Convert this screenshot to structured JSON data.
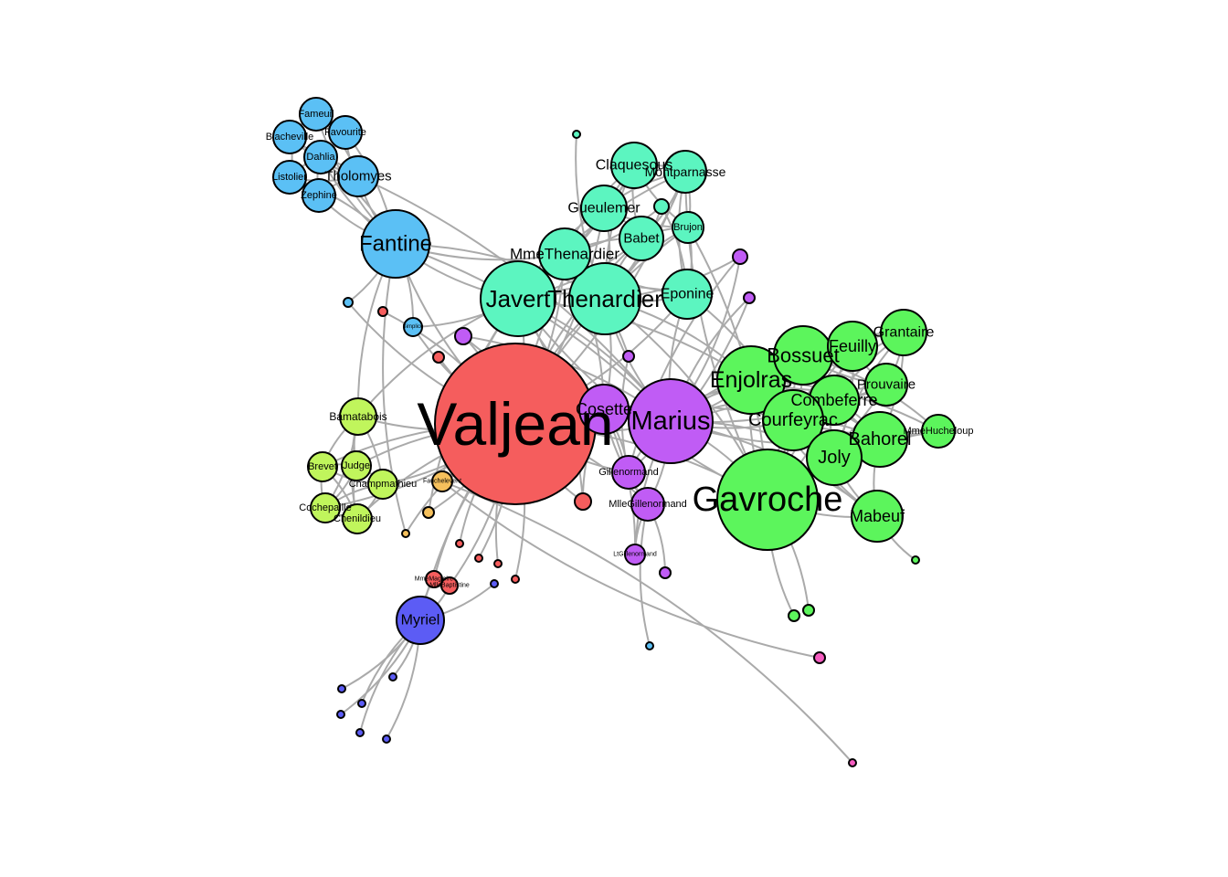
{
  "groups": {
    "valjean": "#f55d5d",
    "fantine": "#5bc0f5",
    "thenardier": "#5cf5c0",
    "marius": "#c05cf5",
    "gavroche": "#5cf55c",
    "trial": "#c0f55c",
    "myriel": "#5c5cf5",
    "fauchelevent": "#f5c05c",
    "misc": "#f55cc0"
  },
  "nodes": [
    {
      "id": "Valjean",
      "label": "Valjean",
      "group": "valjean"
    },
    {
      "id": "Fantine",
      "label": "Fantine",
      "group": "fantine"
    },
    {
      "id": "Favourite",
      "label": "Favourite",
      "group": "fantine"
    },
    {
      "id": "Fameuil",
      "label": "Fameuil",
      "group": "fantine"
    },
    {
      "id": "Blacheville",
      "label": "Blacheville",
      "group": "fantine"
    },
    {
      "id": "Dahlia",
      "label": "Dahlia",
      "group": "fantine"
    },
    {
      "id": "Listolier",
      "label": "Listolier",
      "group": "fantine"
    },
    {
      "id": "Tholomyes",
      "label": "Tholomyes",
      "group": "fantine"
    },
    {
      "id": "Zephine",
      "label": "Zephine",
      "group": "fantine"
    },
    {
      "id": "Simplice",
      "label": "Simplice",
      "group": "fantine"
    },
    {
      "id": "Marguerite",
      "label": "",
      "group": "fantine"
    },
    {
      "id": "Javert",
      "label": "Javert",
      "group": "thenardier"
    },
    {
      "id": "Thenardier",
      "label": "Thenardier",
      "group": "thenardier"
    },
    {
      "id": "MmeThenardier",
      "label": "MmeThenardier",
      "group": "thenardier"
    },
    {
      "id": "Claquesous",
      "label": "Claquesous",
      "group": "thenardier"
    },
    {
      "id": "Montparnasse",
      "label": "Montparnasse",
      "group": "thenardier"
    },
    {
      "id": "Gueulemer",
      "label": "Gueulemer",
      "group": "thenardier"
    },
    {
      "id": "Babet",
      "label": "Babet",
      "group": "thenardier"
    },
    {
      "id": "Brujon",
      "label": "Brujon",
      "group": "thenardier"
    },
    {
      "id": "Eponine",
      "label": "Eponine",
      "group": "thenardier"
    },
    {
      "id": "Anzelma",
      "label": "",
      "group": "thenardier"
    },
    {
      "id": "Boulatruelle",
      "label": "",
      "group": "thenardier"
    },
    {
      "id": "Marius",
      "label": "Marius",
      "group": "marius"
    },
    {
      "id": "Cosette",
      "label": "Cosette",
      "group": "marius"
    },
    {
      "id": "Gillenormand",
      "label": "Gillenormand",
      "group": "marius"
    },
    {
      "id": "MlleGillenormand",
      "label": "MlleGillenormand",
      "group": "marius"
    },
    {
      "id": "LtGillenormand",
      "label": "LtGillenormand",
      "group": "marius"
    },
    {
      "id": "Woman2",
      "label": "",
      "group": "marius"
    },
    {
      "id": "Pontmercy",
      "label": "",
      "group": "marius"
    },
    {
      "id": "BaronessT",
      "label": "",
      "group": "marius"
    },
    {
      "id": "Magnon",
      "label": "",
      "group": "marius"
    },
    {
      "id": "MlleVaubois",
      "label": "",
      "group": "marius"
    },
    {
      "id": "Toussaint",
      "label": "",
      "group": "valjean"
    },
    {
      "id": "Gavroche",
      "label": "Gavroche",
      "group": "gavroche"
    },
    {
      "id": "Enjolras",
      "label": "Enjolras",
      "group": "gavroche"
    },
    {
      "id": "Bossuet",
      "label": "Bossuet",
      "group": "gavroche"
    },
    {
      "id": "Feuilly",
      "label": "Feuilly",
      "group": "gavroche"
    },
    {
      "id": "Grantaire",
      "label": "Grantaire",
      "group": "gavroche"
    },
    {
      "id": "Prouvaire",
      "label": "Prouvaire",
      "group": "gavroche"
    },
    {
      "id": "Combeferre",
      "label": "Combeferre",
      "group": "gavroche"
    },
    {
      "id": "Courfeyrac",
      "label": "Courfeyrac",
      "group": "gavroche"
    },
    {
      "id": "Bahorel",
      "label": "Bahorel",
      "group": "gavroche"
    },
    {
      "id": "MmeHucheloup",
      "label": "MmeHucheloup",
      "group": "gavroche"
    },
    {
      "id": "Joly",
      "label": "Joly",
      "group": "gavroche"
    },
    {
      "id": "Mabeuf",
      "label": "Mabeuf",
      "group": "gavroche"
    },
    {
      "id": "Child1",
      "label": "",
      "group": "gavroche"
    },
    {
      "id": "Child2",
      "label": "",
      "group": "gavroche"
    },
    {
      "id": "MotherPlutarch",
      "label": "",
      "group": "gavroche"
    },
    {
      "id": "MotherInnocent",
      "label": "",
      "group": "misc"
    },
    {
      "id": "Gribier",
      "label": "",
      "group": "misc"
    },
    {
      "id": "Bamatabois",
      "label": "Bamatabois",
      "group": "trial"
    },
    {
      "id": "Brevet",
      "label": "Brevet",
      "group": "trial"
    },
    {
      "id": "Judge",
      "label": "Judge",
      "group": "trial"
    },
    {
      "id": "Champmathieu",
      "label": "Champmathieu",
      "group": "trial"
    },
    {
      "id": "Cochepaille",
      "label": "Cochepaille",
      "group": "trial"
    },
    {
      "id": "Chenildieu",
      "label": "Chenildieu",
      "group": "trial"
    },
    {
      "id": "Fauchelevent",
      "label": "Fauchelevent",
      "group": "fauchelevent"
    },
    {
      "id": "Woman1",
      "label": "",
      "group": "fauchelevent"
    },
    {
      "id": "Perpetue",
      "label": "",
      "group": "fauchelevent"
    },
    {
      "id": "Myriel",
      "label": "Myriel",
      "group": "myriel"
    },
    {
      "id": "Napoleon",
      "label": "",
      "group": "myriel"
    },
    {
      "id": "MlleBaptistine",
      "label": "MlleBaptistine",
      "group": "valjean"
    },
    {
      "id": "MmeMagloire",
      "label": "MmeMagloire",
      "group": "valjean"
    },
    {
      "id": "Isabeau",
      "label": "",
      "group": "valjean"
    },
    {
      "id": "Gervais",
      "label": "",
      "group": "valjean"
    },
    {
      "id": "Labarre",
      "label": "",
      "group": "valjean"
    },
    {
      "id": "MmeDeR",
      "label": "",
      "group": "valjean"
    },
    {
      "id": "Scaufflaire",
      "label": "",
      "group": "valjean"
    },
    {
      "id": "Cravatte",
      "label": "",
      "group": "myriel"
    },
    {
      "id": "Count",
      "label": "",
      "group": "myriel"
    },
    {
      "id": "OldMan",
      "label": "",
      "group": "myriel"
    },
    {
      "id": "CountessDeLo",
      "label": "",
      "group": "myriel"
    },
    {
      "id": "Geborand",
      "label": "",
      "group": "myriel"
    },
    {
      "id": "Champtercier",
      "label": "",
      "group": "myriel"
    },
    {
      "id": "MmePontmercy",
      "label": "",
      "group": "fantine"
    },
    {
      "id": "Gertrude",
      "label": "",
      "group": "valjean"
    }
  ],
  "edges": [
    [
      "Valjean",
      "Fantine"
    ],
    [
      "Valjean",
      "Javert"
    ],
    [
      "Valjean",
      "Thenardier"
    ],
    [
      "Valjean",
      "MmeThenardier"
    ],
    [
      "Valjean",
      "Cosette"
    ],
    [
      "Valjean",
      "Marius"
    ],
    [
      "Valjean",
      "Gavroche"
    ],
    [
      "Valjean",
      "Enjolras"
    ],
    [
      "Valjean",
      "Bamatabois"
    ],
    [
      "Valjean",
      "Judge"
    ],
    [
      "Valjean",
      "Champmathieu"
    ],
    [
      "Valjean",
      "Brevet"
    ],
    [
      "Valjean",
      "Cochepaille"
    ],
    [
      "Valjean",
      "Chenildieu"
    ],
    [
      "Valjean",
      "Fauchelevent"
    ],
    [
      "Valjean",
      "Myriel"
    ],
    [
      "Valjean",
      "MlleBaptistine"
    ],
    [
      "Valjean",
      "MmeMagloire"
    ],
    [
      "Valjean",
      "Simplice"
    ],
    [
      "Valjean",
      "Gillenormand"
    ],
    [
      "Valjean",
      "MlleGillenormand"
    ],
    [
      "Valjean",
      "Toussaint"
    ],
    [
      "Valjean",
      "Woman1"
    ],
    [
      "Valjean",
      "Woman2"
    ],
    [
      "Valjean",
      "Isabeau"
    ],
    [
      "Valjean",
      "Gervais"
    ],
    [
      "Valjean",
      "Labarre"
    ],
    [
      "Valjean",
      "MmeDeR"
    ],
    [
      "Valjean",
      "Scaufflaire"
    ],
    [
      "Valjean",
      "Perpetue"
    ],
    [
      "Valjean",
      "Marguerite"
    ],
    [
      "Valjean",
      "Gertrude"
    ],
    [
      "Valjean",
      "Babet"
    ],
    [
      "Valjean",
      "Gueulemer"
    ],
    [
      "Valjean",
      "Claquesous"
    ],
    [
      "Valjean",
      "Montparnasse"
    ],
    [
      "Valjean",
      "Brujon"
    ],
    [
      "Valjean",
      "Eponine"
    ],
    [
      "Valjean",
      "Courfeyrac"
    ],
    [
      "Valjean",
      "Bossuet"
    ],
    [
      "Fantine",
      "Tholomyes"
    ],
    [
      "Fantine",
      "Favourite"
    ],
    [
      "Fantine",
      "Fameuil"
    ],
    [
      "Fantine",
      "Blacheville"
    ],
    [
      "Fantine",
      "Dahlia"
    ],
    [
      "Fantine",
      "Listolier"
    ],
    [
      "Fantine",
      "Zephine"
    ],
    [
      "Fantine",
      "Javert"
    ],
    [
      "Fantine",
      "Thenardier"
    ],
    [
      "Fantine",
      "MmeThenardier"
    ],
    [
      "Fantine",
      "Simplice"
    ],
    [
      "Fantine",
      "Bamatabois"
    ],
    [
      "Fantine",
      "Marguerite"
    ],
    [
      "Fantine",
      "Perpetue"
    ],
    [
      "Tholomyes",
      "Favourite"
    ],
    [
      "Tholomyes",
      "Fameuil"
    ],
    [
      "Tholomyes",
      "Blacheville"
    ],
    [
      "Tholomyes",
      "Dahlia"
    ],
    [
      "Tholomyes",
      "Listolier"
    ],
    [
      "Tholomyes",
      "Zephine"
    ],
    [
      "Tholomyes",
      "Marius"
    ],
    [
      "Favourite",
      "Fameuil"
    ],
    [
      "Favourite",
      "Dahlia"
    ],
    [
      "Fameuil",
      "Blacheville"
    ],
    [
      "Blacheville",
      "Listolier"
    ],
    [
      "Dahlia",
      "Zephine"
    ],
    [
      "Listolier",
      "Zephine"
    ],
    [
      "Dahlia",
      "Listolier"
    ],
    [
      "Javert",
      "Thenardier"
    ],
    [
      "Javert",
      "MmeThenardier"
    ],
    [
      "Javert",
      "Eponine"
    ],
    [
      "Javert",
      "Babet"
    ],
    [
      "Javert",
      "Gueulemer"
    ],
    [
      "Javert",
      "Claquesous"
    ],
    [
      "Javert",
      "Montparnasse"
    ],
    [
      "Javert",
      "Cosette"
    ],
    [
      "Javert",
      "Marius"
    ],
    [
      "Javert",
      "Gavroche"
    ],
    [
      "Javert",
      "Enjolras"
    ],
    [
      "Javert",
      "Bamatabois"
    ],
    [
      "Javert",
      "Simplice"
    ],
    [
      "Javert",
      "Woman1"
    ],
    [
      "Javert",
      "Toussaint"
    ],
    [
      "Thenardier",
      "MmeThenardier"
    ],
    [
      "Thenardier",
      "Babet"
    ],
    [
      "Thenardier",
      "Gueulemer"
    ],
    [
      "Thenardier",
      "Claquesous"
    ],
    [
      "Thenardier",
      "Montparnasse"
    ],
    [
      "Thenardier",
      "Brujon"
    ],
    [
      "Thenardier",
      "Eponine"
    ],
    [
      "Thenardier",
      "Cosette"
    ],
    [
      "Thenardier",
      "Marius"
    ],
    [
      "Thenardier",
      "Gavroche"
    ],
    [
      "Thenardier",
      "Anzelma"
    ],
    [
      "Thenardier",
      "Boulatruelle"
    ],
    [
      "Thenardier",
      "Pontmercy"
    ],
    [
      "MmeThenardier",
      "Babet"
    ],
    [
      "MmeThenardier",
      "Gueulemer"
    ],
    [
      "MmeThenardier",
      "Claquesous"
    ],
    [
      "MmeThenardier",
      "Eponine"
    ],
    [
      "MmeThenardier",
      "Cosette"
    ],
    [
      "MmeThenardier",
      "Anzelma"
    ],
    [
      "MmeThenardier",
      "Magnon"
    ],
    [
      "Babet",
      "Gueulemer"
    ],
    [
      "Babet",
      "Claquesous"
    ],
    [
      "Babet",
      "Montparnasse"
    ],
    [
      "Babet",
      "Brujon"
    ],
    [
      "Gueulemer",
      "Claquesous"
    ],
    [
      "Gueulemer",
      "Montparnasse"
    ],
    [
      "Gueulemer",
      "Brujon"
    ],
    [
      "Claquesous",
      "Montparnasse"
    ],
    [
      "Claquesous",
      "Brujon"
    ],
    [
      "Montparnasse",
      "Brujon"
    ],
    [
      "Eponine",
      "Marius"
    ],
    [
      "Eponine",
      "Montparnasse"
    ],
    [
      "Eponine",
      "Brujon"
    ],
    [
      "Eponine",
      "Courfeyrac"
    ],
    [
      "Eponine",
      "Anzelma"
    ],
    [
      "Marius",
      "Cosette"
    ],
    [
      "Marius",
      "Gillenormand"
    ],
    [
      "Marius",
      "MlleGillenormand"
    ],
    [
      "Marius",
      "LtGillenormand"
    ],
    [
      "Marius",
      "Gavroche"
    ],
    [
      "Marius",
      "Enjolras"
    ],
    [
      "Marius",
      "Bossuet"
    ],
    [
      "Marius",
      "Courfeyrac"
    ],
    [
      "Marius",
      "Combeferre"
    ],
    [
      "Marius",
      "Feuilly"
    ],
    [
      "Marius",
      "Joly"
    ],
    [
      "Marius",
      "Bahorel"
    ],
    [
      "Marius",
      "Mabeuf"
    ],
    [
      "Marius",
      "Pontmercy"
    ],
    [
      "Marius",
      "BaronessT"
    ],
    [
      "Marius",
      "Woman2"
    ],
    [
      "Marius",
      "Grantaire"
    ],
    [
      "Marius",
      "Prouvaire"
    ],
    [
      "Cosette",
      "Gillenormand"
    ],
    [
      "Cosette",
      "MlleGillenormand"
    ],
    [
      "Cosette",
      "Woman2"
    ],
    [
      "Cosette",
      "Toussaint"
    ],
    [
      "Cosette",
      "LtGillenormand"
    ],
    [
      "Gillenormand",
      "MlleGillenormand"
    ],
    [
      "Gillenormand",
      "Magnon"
    ],
    [
      "Gillenormand",
      "BaronessT"
    ],
    [
      "Gillenormand",
      "Pontmercy"
    ],
    [
      "MlleGillenormand",
      "LtGillenormand"
    ],
    [
      "MlleGillenormand",
      "MlleVaubois"
    ],
    [
      "MlleGillenormand",
      "MmePontmercy"
    ],
    [
      "Gavroche",
      "Enjolras"
    ],
    [
      "Gavroche",
      "Bossuet"
    ],
    [
      "Gavroche",
      "Courfeyrac"
    ],
    [
      "Gavroche",
      "Combeferre"
    ],
    [
      "Gavroche",
      "Feuilly"
    ],
    [
      "Gavroche",
      "Joly"
    ],
    [
      "Gavroche",
      "Bahorel"
    ],
    [
      "Gavroche",
      "Mabeuf"
    ],
    [
      "Gavroche",
      "Grantaire"
    ],
    [
      "Gavroche",
      "Prouvaire"
    ],
    [
      "Gavroche",
      "MmeHucheloup"
    ],
    [
      "Gavroche",
      "Child1"
    ],
    [
      "Gavroche",
      "Child2"
    ],
    [
      "Gavroche",
      "Brujon"
    ],
    [
      "Gavroche",
      "Montparnasse"
    ],
    [
      "Enjolras",
      "Bossuet"
    ],
    [
      "Enjolras",
      "Courfeyrac"
    ],
    [
      "Enjolras",
      "Combeferre"
    ],
    [
      "Enjolras",
      "Feuilly"
    ],
    [
      "Enjolras",
      "Joly"
    ],
    [
      "Enjolras",
      "Bahorel"
    ],
    [
      "Enjolras",
      "Mabeuf"
    ],
    [
      "Enjolras",
      "Grantaire"
    ],
    [
      "Enjolras",
      "Prouvaire"
    ],
    [
      "Enjolras",
      "MmeHucheloup"
    ],
    [
      "Bossuet",
      "Courfeyrac"
    ],
    [
      "Bossuet",
      "Combeferre"
    ],
    [
      "Bossuet",
      "Feuilly"
    ],
    [
      "Bossuet",
      "Joly"
    ],
    [
      "Bossuet",
      "Bahorel"
    ],
    [
      "Bossuet",
      "Grantaire"
    ],
    [
      "Bossuet",
      "Prouvaire"
    ],
    [
      "Bossuet",
      "MmeHucheloup"
    ],
    [
      "Courfeyrac",
      "Combeferre"
    ],
    [
      "Courfeyrac",
      "Feuilly"
    ],
    [
      "Courfeyrac",
      "Joly"
    ],
    [
      "Courfeyrac",
      "Bahorel"
    ],
    [
      "Courfeyrac",
      "Mabeuf"
    ],
    [
      "Courfeyrac",
      "Grantaire"
    ],
    [
      "Courfeyrac",
      "MmeHucheloup"
    ],
    [
      "Combeferre",
      "Feuilly"
    ],
    [
      "Combeferre",
      "Joly"
    ],
    [
      "Combeferre",
      "Bahorel"
    ],
    [
      "Combeferre",
      "Prouvaire"
    ],
    [
      "Feuilly",
      "Grantaire"
    ],
    [
      "Feuilly",
      "Prouvaire"
    ],
    [
      "Feuilly",
      "Joly"
    ],
    [
      "Joly",
      "Bahorel"
    ],
    [
      "Joly",
      "Grantaire"
    ],
    [
      "Joly",
      "Mabeuf"
    ],
    [
      "Bahorel",
      "MmeHucheloup"
    ],
    [
      "Bahorel",
      "Grantaire"
    ],
    [
      "Mabeuf",
      "Bahorel"
    ],
    [
      "Mabeuf",
      "MotherPlutarch"
    ],
    [
      "Grantaire",
      "Prouvaire"
    ],
    [
      "Fauchelevent",
      "MotherInnocent"
    ],
    [
      "Fauchelevent",
      "Gribier"
    ],
    [
      "Bamatabois",
      "Judge"
    ],
    [
      "Bamatabois",
      "Champmathieu"
    ],
    [
      "Bamatabois",
      "Brevet"
    ],
    [
      "Bamatabois",
      "Cochepaille"
    ],
    [
      "Bamatabois",
      "Chenildieu"
    ],
    [
      "Judge",
      "Champmathieu"
    ],
    [
      "Judge",
      "Brevet"
    ],
    [
      "Judge",
      "Cochepaille"
    ],
    [
      "Judge",
      "Chenildieu"
    ],
    [
      "Champmathieu",
      "Brevet"
    ],
    [
      "Champmathieu",
      "Cochepaille"
    ],
    [
      "Champmathieu",
      "Chenildieu"
    ],
    [
      "Brevet",
      "Cochepaille"
    ],
    [
      "Brevet",
      "Chenildieu"
    ],
    [
      "Cochepaille",
      "Chenildieu"
    ],
    [
      "Myriel",
      "Napoleon"
    ],
    [
      "Myriel",
      "MlleBaptistine"
    ],
    [
      "Myriel",
      "MmeMagloire"
    ],
    [
      "Myriel",
      "CountessDeLo"
    ],
    [
      "Myriel",
      "Geborand"
    ],
    [
      "Myriel",
      "Champtercier"
    ],
    [
      "Myriel",
      "Cravatte"
    ],
    [
      "Myriel",
      "Count"
    ],
    [
      "Myriel",
      "OldMan"
    ],
    [
      "MlleBaptistine",
      "MmeMagloire"
    ],
    [
      "Fantine",
      "Marius"
    ],
    [
      "Javert",
      "Fauchelevent"
    ],
    [
      "Thenardier",
      "Enjolras"
    ]
  ]
}
